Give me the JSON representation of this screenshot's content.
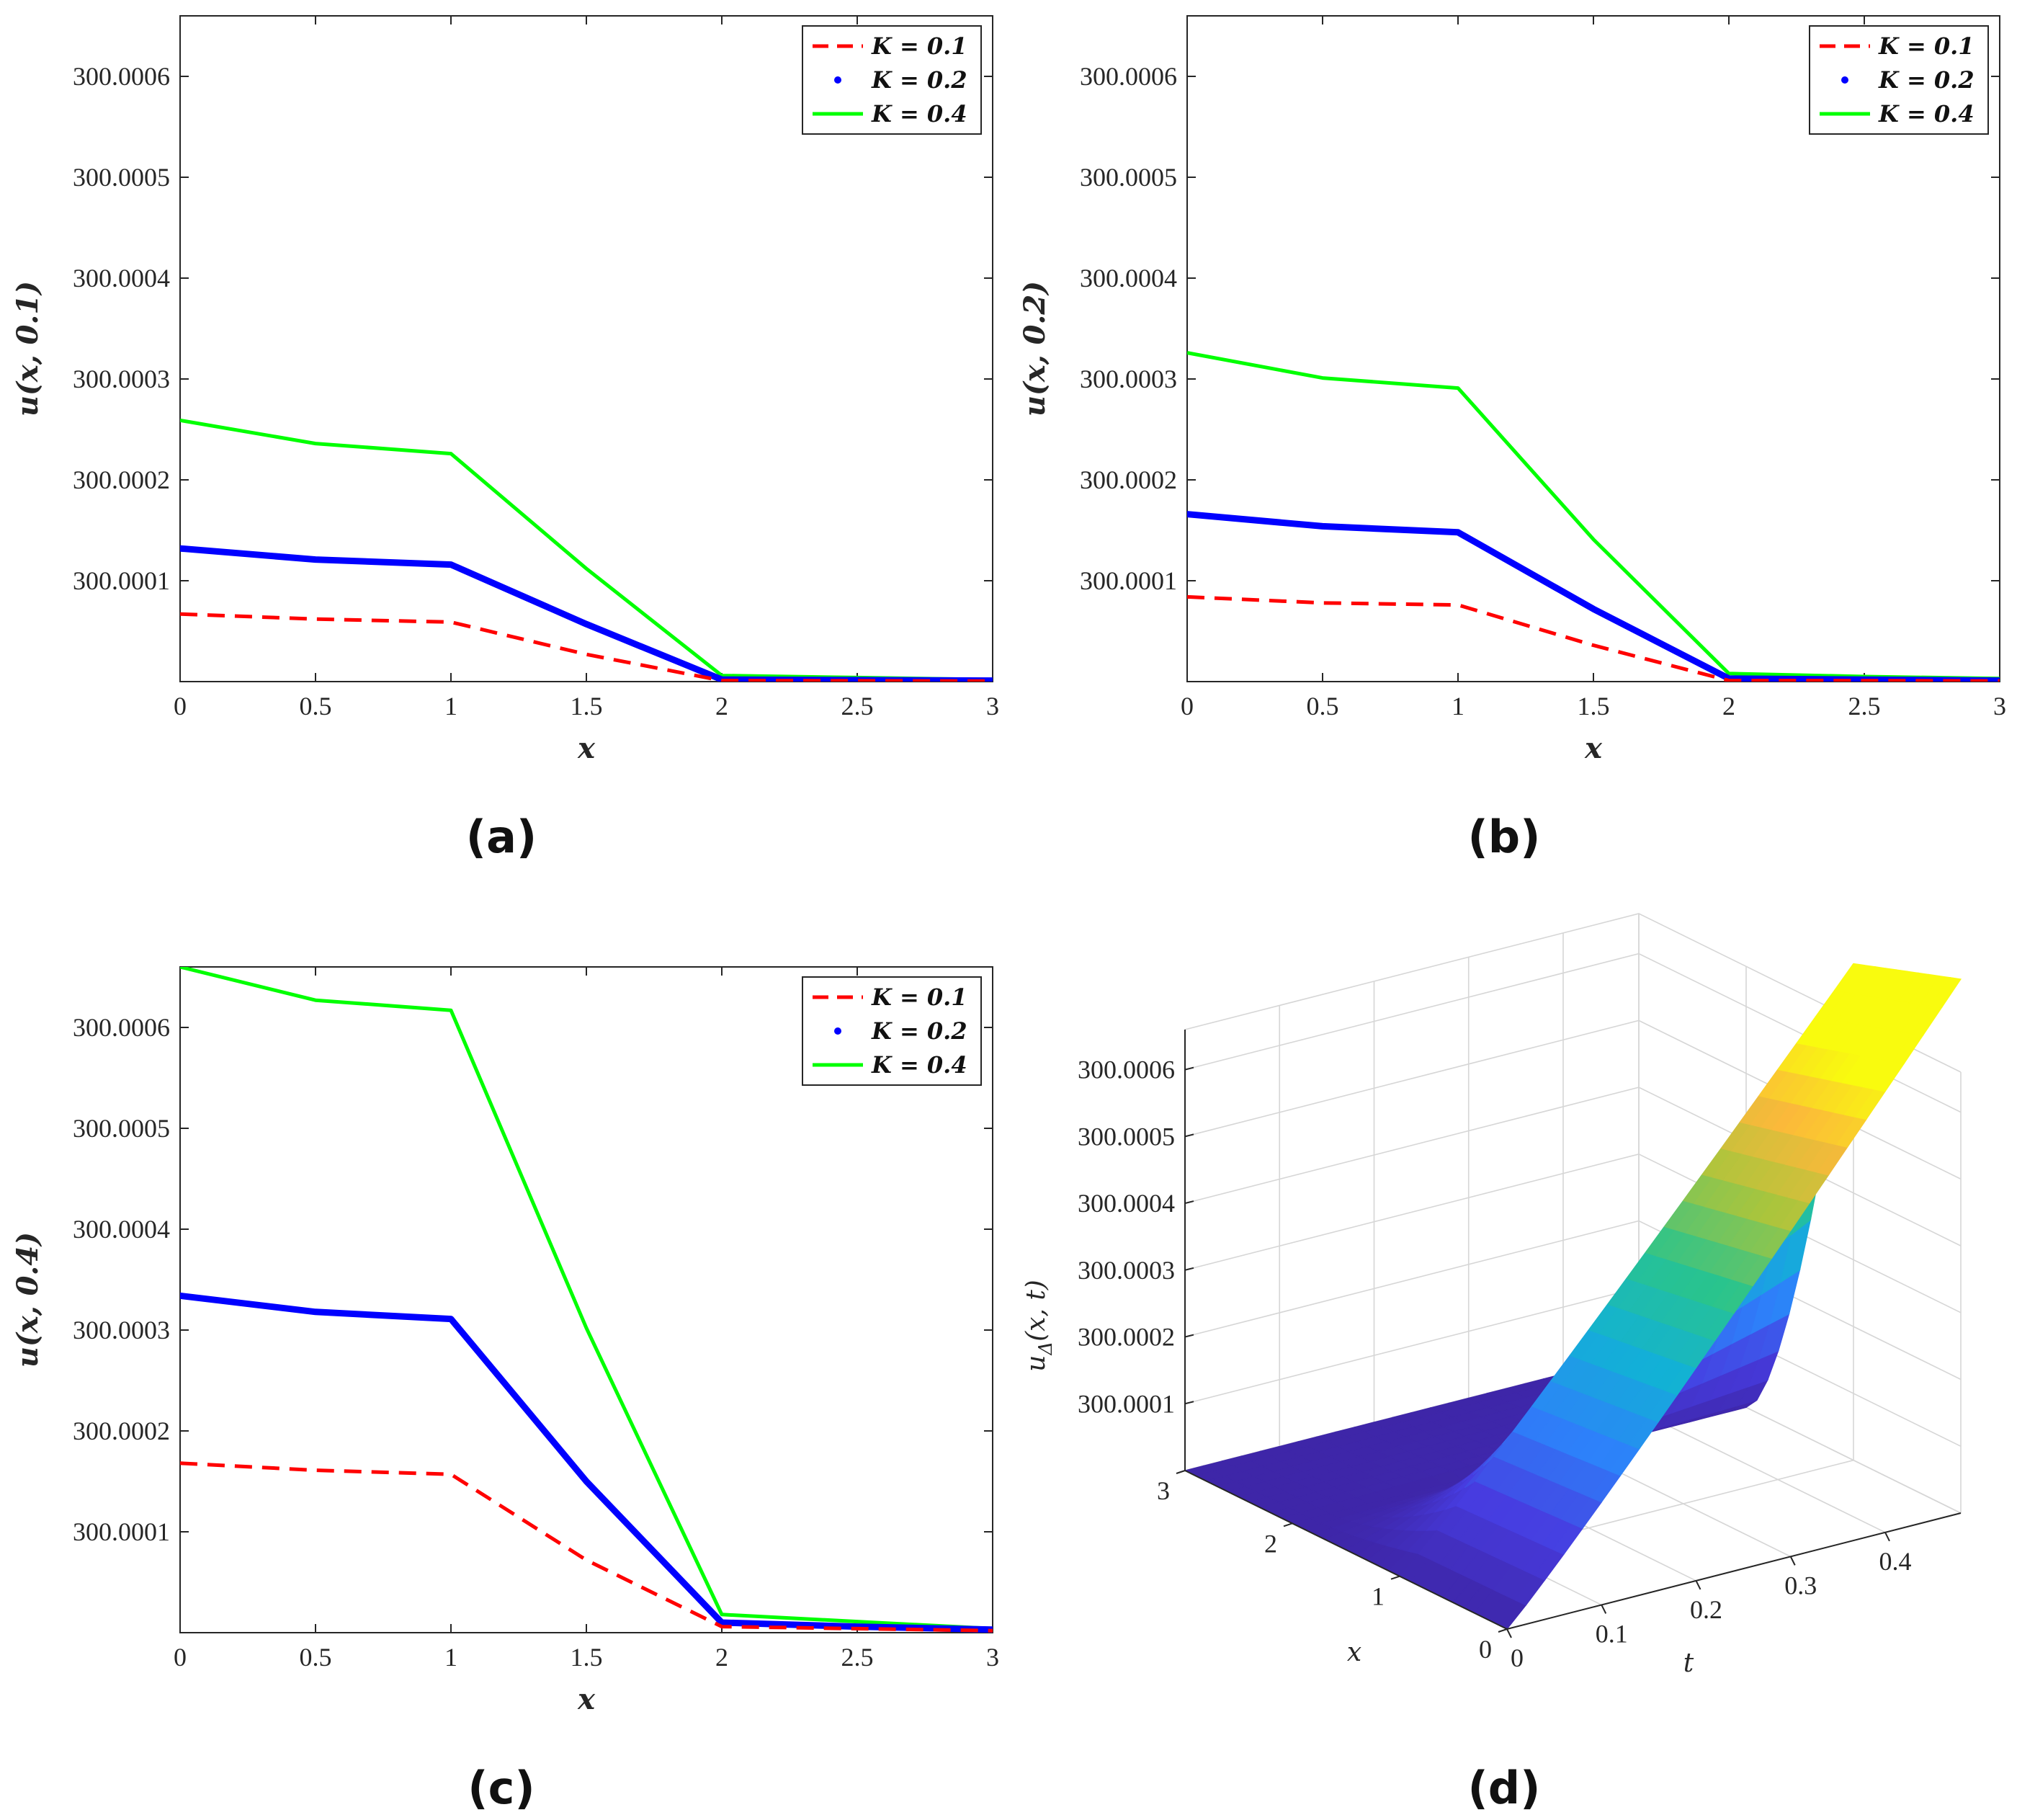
{
  "figure": {
    "panel_labels": [
      "(a)",
      "(b)",
      "(c)",
      "(d)"
    ]
  },
  "chart_data": [
    {
      "type": "line",
      "panel": "(a)",
      "xlabel": "x",
      "ylabel": "u(x, 0.1)",
      "xlim": [
        0,
        3
      ],
      "ylim": [
        300.0,
        300.00066
      ],
      "xticks": [
        0,
        0.5,
        1,
        1.5,
        2,
        2.5,
        3
      ],
      "xtick_labels": [
        "0",
        "0.5",
        "1",
        "1.5",
        "2",
        "2.5",
        "3"
      ],
      "yticks": [
        300.0001,
        300.0002,
        300.0003,
        300.0004,
        300.0005,
        300.0006
      ],
      "ytick_labels": [
        "300.0001",
        "300.0002",
        "300.0003",
        "300.0004",
        "300.0005",
        "300.0006"
      ],
      "legend_position": "top-right",
      "series": [
        {
          "name": "K = 0.1",
          "style": "dashed",
          "color": "#ff0000",
          "x": [
            0,
            0.5,
            1,
            1.5,
            2,
            2.5,
            3
          ],
          "y": [
            300.000067,
            300.000062,
            300.000059,
            300.000027,
            300.000001,
            300.0000008,
            300.0000005
          ]
        },
        {
          "name": "K = 0.2",
          "style": "dotted",
          "color": "#0000ff",
          "x": [
            0,
            0.5,
            1,
            1.5,
            2,
            2.5,
            3
          ],
          "y": [
            300.000132,
            300.000121,
            300.000116,
            300.000057,
            300.000002,
            300.0000015,
            300.000001
          ]
        },
        {
          "name": "K = 0.4",
          "style": "solid",
          "color": "#00ff00",
          "x": [
            0,
            0.5,
            1,
            1.5,
            2,
            2.5,
            3
          ],
          "y": [
            300.000259,
            300.000236,
            300.000226,
            300.000112,
            300.000006,
            300.000004,
            300.000002
          ]
        }
      ]
    },
    {
      "type": "line",
      "panel": "(b)",
      "xlabel": "x",
      "ylabel": "u(x, 0.2)",
      "xlim": [
        0,
        3
      ],
      "ylim": [
        300.0,
        300.00066
      ],
      "xticks": [
        0,
        0.5,
        1,
        1.5,
        2,
        2.5,
        3
      ],
      "xtick_labels": [
        "0",
        "0.5",
        "1",
        "1.5",
        "2",
        "2.5",
        "3"
      ],
      "yticks": [
        300.0001,
        300.0002,
        300.0003,
        300.0004,
        300.0005,
        300.0006
      ],
      "ytick_labels": [
        "300.0001",
        "300.0002",
        "300.0003",
        "300.0004",
        "300.0005",
        "300.0006"
      ],
      "legend_position": "top-right",
      "series": [
        {
          "name": "K = 0.1",
          "style": "dashed",
          "color": "#ff0000",
          "x": [
            0,
            0.5,
            1,
            1.5,
            2,
            2.5,
            3
          ],
          "y": [
            300.000084,
            300.000078,
            300.000076,
            300.000036,
            300.000001,
            300.0000009,
            300.0000006
          ]
        },
        {
          "name": "K = 0.2",
          "style": "dotted",
          "color": "#0000ff",
          "x": [
            0,
            0.5,
            1,
            1.5,
            2,
            2.5,
            3
          ],
          "y": [
            300.000166,
            300.000154,
            300.000148,
            300.000072,
            300.000003,
            300.000002,
            300.000001
          ]
        },
        {
          "name": "K = 0.4",
          "style": "solid",
          "color": "#00ff00",
          "x": [
            0,
            0.5,
            1,
            1.5,
            2,
            2.5,
            3
          ],
          "y": [
            300.000326,
            300.000301,
            300.000291,
            300.000141,
            300.000008,
            300.000005,
            300.000003
          ]
        }
      ]
    },
    {
      "type": "line",
      "panel": "(c)",
      "xlabel": "x",
      "ylabel": "u(x, 0.4)",
      "xlim": [
        0,
        3
      ],
      "ylim": [
        300.0,
        300.00066
      ],
      "xticks": [
        0,
        0.5,
        1,
        1.5,
        2,
        2.5,
        3
      ],
      "xtick_labels": [
        "0",
        "0.5",
        "1",
        "1.5",
        "2",
        "2.5",
        "3"
      ],
      "yticks": [
        300.0001,
        300.0002,
        300.0003,
        300.0004,
        300.0005,
        300.0006
      ],
      "ytick_labels": [
        "300.0001",
        "300.0002",
        "300.0003",
        "300.0004",
        "300.0005",
        "300.0006"
      ],
      "legend_position": "top-right",
      "series": [
        {
          "name": "K = 0.1",
          "style": "dashed",
          "color": "#ff0000",
          "x": [
            0,
            0.5,
            1,
            1.5,
            2,
            2.5,
            3
          ],
          "y": [
            300.000168,
            300.000161,
            300.000157,
            300.000072,
            300.000006,
            300.000004,
            300.000002
          ]
        },
        {
          "name": "K = 0.2",
          "style": "dotted",
          "color": "#0000ff",
          "x": [
            0,
            0.5,
            1,
            1.5,
            2,
            2.5,
            3
          ],
          "y": [
            300.000334,
            300.000318,
            300.000311,
            300.00015,
            300.00001,
            300.000006,
            300.000003
          ]
        },
        {
          "name": "K = 0.4",
          "style": "solid",
          "color": "#00ff00",
          "x": [
            0,
            0.5,
            1,
            1.5,
            2,
            2.5,
            3
          ],
          "y": [
            300.00066,
            300.000627,
            300.000617,
            300.000302,
            300.000018,
            300.000011,
            300.000004
          ]
        }
      ]
    },
    {
      "type": "surface",
      "panel": "(d)",
      "xlabel": "t",
      "ylabel": "x",
      "zlabel": "u_Δ(x, t)",
      "zlabel_base": "u",
      "zlabel_sub": "Δ",
      "zlabel_args": "(x, t)",
      "tlim": [
        0,
        0.48
      ],
      "xlim": [
        0,
        3
      ],
      "zlim": [
        300.0,
        300.00066
      ],
      "t_ticks": [
        0,
        0.1,
        0.2,
        0.3,
        0.4
      ],
      "t_tick_labels": [
        "0",
        "0.1",
        "0.2",
        "0.3",
        "0.4"
      ],
      "x_ticks": [
        0,
        1,
        2,
        3
      ],
      "x_tick_labels": [
        "0",
        "1",
        "2",
        "3"
      ],
      "z_ticks": [
        300.0001,
        300.0002,
        300.0003,
        300.0004,
        300.0005,
        300.0006
      ],
      "z_tick_labels": [
        "300.0001",
        "300.0002",
        "300.0003",
        "300.0004",
        "300.0005",
        "300.0006"
      ],
      "colormap": "parula",
      "colors": {
        "low": "#3e26a8",
        "mid": "#00b8c0",
        "high": "#f9fb0e"
      }
    }
  ]
}
